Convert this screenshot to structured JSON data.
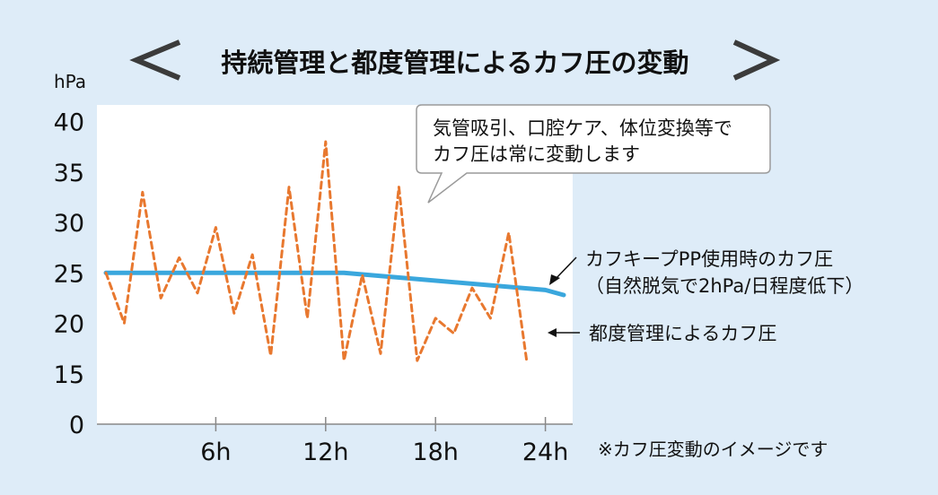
{
  "chart_data": {
    "type": "line",
    "title": "持続管理と都度管理によるカフ圧の変動",
    "ylabel": "hPa",
    "ylim": [
      0,
      40
    ],
    "yticks": [
      "0",
      "15",
      "20",
      "25",
      "30",
      "35",
      "40"
    ],
    "xticks": [
      {
        "x": 6,
        "label": "6h"
      },
      {
        "x": 12,
        "label": "12h"
      },
      {
        "x": 18,
        "label": "18h"
      },
      {
        "x": 24,
        "label": "24h"
      }
    ],
    "xlim": [
      0,
      25.5
    ],
    "series": [
      {
        "name": "カフキープPP使用時のカフ圧",
        "name_line2": "（自然脱気で2hPa/日程度低下）",
        "color": "#3aa7dd",
        "style": "solid",
        "points": [
          [
            0,
            25
          ],
          [
            13,
            25
          ],
          [
            24,
            23.3
          ],
          [
            25,
            22.8
          ]
        ]
      },
      {
        "name": "都度管理によるカフ圧",
        "color": "#e8782f",
        "style": "dashed",
        "points": [
          [
            0,
            25
          ],
          [
            1,
            20
          ],
          [
            2,
            33
          ],
          [
            3,
            22.5
          ],
          [
            4,
            26.5
          ],
          [
            5,
            23
          ],
          [
            6,
            29.5
          ],
          [
            7,
            21
          ],
          [
            8,
            26.8
          ],
          [
            9,
            16.8
          ],
          [
            10,
            33.5
          ],
          [
            11,
            20.5
          ],
          [
            12,
            38
          ],
          [
            13,
            16.3
          ],
          [
            14,
            24.8
          ],
          [
            15,
            17
          ],
          [
            16,
            33.5
          ],
          [
            17,
            16.3
          ],
          [
            18,
            20.5
          ],
          [
            19,
            19
          ],
          [
            20,
            23.5
          ],
          [
            21,
            20.5
          ],
          [
            22,
            29
          ],
          [
            23,
            16
          ]
        ]
      }
    ]
  },
  "callout": {
    "line1": "気管吸引、口腔ケア、体位変換等で",
    "line2": "カフ圧は常に変動します"
  },
  "note": "※カフ圧変動のイメージです",
  "colors": {
    "background": "#deecf8",
    "plot_background": "#ffffff",
    "solid_line": "#3aa7dd",
    "dashed_line": "#e8782f",
    "title_chevron": "#3b3b3b"
  }
}
